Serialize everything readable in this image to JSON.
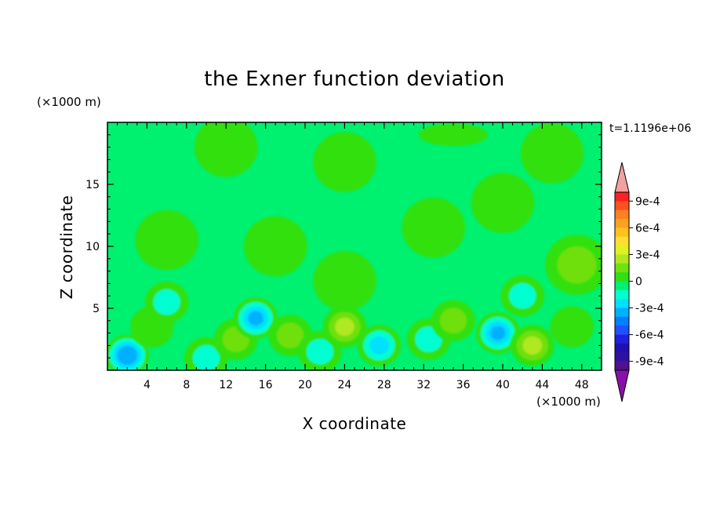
{
  "chart_data": {
    "type": "heatmap",
    "title": "the Exner function deviation",
    "xlabel": "X coordinate",
    "ylabel": "Z coordinate",
    "x_unit": "(×1000 m)",
    "y_unit": "(×1000 m)",
    "time_label": "t=1.1196e+06",
    "xlim": [
      0,
      50
    ],
    "ylim": [
      0,
      20
    ],
    "x_ticks": [
      4,
      8,
      12,
      16,
      20,
      24,
      28,
      32,
      36,
      40,
      44,
      48
    ],
    "y_ticks": [
      5,
      10,
      15
    ],
    "colorbar": {
      "levels": [
        -0.0011,
        -0.001,
        -0.0009,
        -0.0008,
        -0.0007,
        -0.0006,
        -0.0005,
        -0.0004,
        -0.0003,
        -0.0002,
        -0.0001,
        0,
        0.0001,
        0.0002,
        0.0003,
        0.0004,
        0.0005,
        0.0006,
        0.0007,
        0.0008,
        0.0009,
        0.001,
        0.0011
      ],
      "tick_values": [
        0.0009,
        0.0006,
        0.0003,
        0,
        -0.0003,
        -0.0006,
        -0.0009
      ],
      "tick_labels": [
        "9e-4",
        "6e-4",
        "3e-4",
        "0",
        "-3e-4",
        "-6e-4",
        "-9e-4"
      ],
      "colors_top_to_bottom": [
        "#ff2020",
        "#ff5020",
        "#ff8020",
        "#ffa020",
        "#ffc020",
        "#ffe030",
        "#e0f020",
        "#b0e820",
        "#70e010",
        "#30e010",
        "#00f070",
        "#00ffd0",
        "#00e0ff",
        "#00b0ff",
        "#0080ff",
        "#2050ff",
        "#2020e0",
        "#2010b0",
        "#3010a0",
        "#501090"
      ],
      "over_color": "#f2a0a0",
      "under_color": "#8810a8"
    },
    "features": [
      {
        "x": 2,
        "z": 1.2,
        "value": -0.0005
      },
      {
        "x": 4.5,
        "z": 3.5,
        "value": 0.0001
      },
      {
        "x": 6,
        "z": 5.5,
        "value": -0.0002
      },
      {
        "x": 10,
        "z": 1.0,
        "value": -0.0002
      },
      {
        "x": 13,
        "z": 2.5,
        "value": 0.0002
      },
      {
        "x": 15,
        "z": 4.2,
        "value": -0.0004
      },
      {
        "x": 18.5,
        "z": 2.8,
        "value": 0.0002
      },
      {
        "x": 21.5,
        "z": 1.5,
        "value": -0.0002
      },
      {
        "x": 24,
        "z": 3.5,
        "value": 0.0003
      },
      {
        "x": 27.5,
        "z": 2.0,
        "value": -0.0003
      },
      {
        "x": 32.5,
        "z": 2.5,
        "value": -0.0002
      },
      {
        "x": 35,
        "z": 4.0,
        "value": 0.0002
      },
      {
        "x": 39.5,
        "z": 3.0,
        "value": -0.0004
      },
      {
        "x": 43,
        "z": 2.0,
        "value": 0.0003
      },
      {
        "x": 47,
        "z": 3.5,
        "value": 0.0001
      },
      {
        "x": 47.5,
        "z": 8.5,
        "value": 0.0002
      },
      {
        "x": 24,
        "z": 7.2,
        "value": 0.0001
      },
      {
        "x": 42,
        "z": 6.0,
        "value": -0.0002
      },
      {
        "x": 6,
        "z": 10.5,
        "value": -0.0001
      },
      {
        "x": 17,
        "z": 10.0,
        "value": -0.0001
      },
      {
        "x": 33,
        "z": 11.5,
        "value": -0.0001
      },
      {
        "x": 40,
        "z": 13.5,
        "value": -0.0001
      },
      {
        "x": 12,
        "z": 18.0,
        "value": -0.0001
      },
      {
        "x": 24,
        "z": 16.8,
        "value": -0.0001
      },
      {
        "x": 45,
        "z": 17.5,
        "value": -0.0001
      },
      {
        "x": 35,
        "z": 19.0,
        "value": 0
      }
    ]
  }
}
